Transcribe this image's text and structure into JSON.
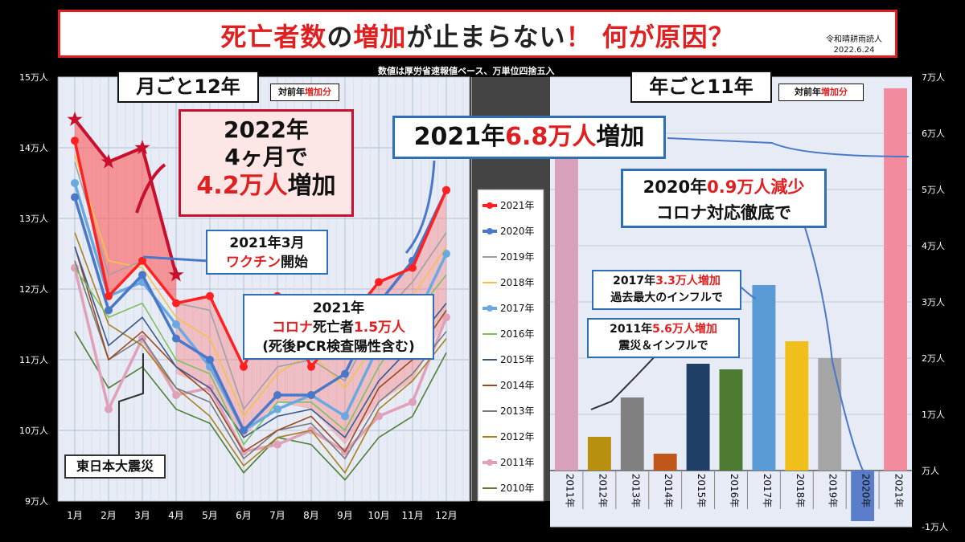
{
  "title": {
    "part1": "死亡者数",
    "part2": "の",
    "part3": "増加",
    "part4": "が止まらない",
    "part5": "！ 何が原因？",
    "credit_line1": "令和晴耕雨読人",
    "credit_line2": "2022.6.24"
  },
  "source_note": "数値は厚労省速報値ベース、万単位四捨五入",
  "left_panel": {
    "heading": "月ごと12年",
    "tag_prefix": "対前年",
    "tag_red": "増加分",
    "callout_2022_line1": "2022年",
    "callout_2022_line2": "4ヶ月で",
    "callout_2022_line3_red": "4.2万人",
    "callout_2022_line3_rest": "増加",
    "callout_vaccine_line1": "2021年3月",
    "callout_vaccine_line2_red": "ワクチン",
    "callout_vaccine_line2_rest": "開始",
    "callout_covid_line1": "2021年",
    "callout_covid_line2_red1": "コロナ",
    "callout_covid_line2_mid": "死亡者",
    "callout_covid_line2_red2": "1.5万人",
    "callout_covid_line3": "(死後PCR検査陽性含む)",
    "callout_quake": "東日本大震災"
  },
  "right_panel": {
    "heading": "年ごと11年",
    "tag_prefix": "対前年",
    "tag_red": "増加分",
    "callout_2021_pre": "2021年",
    "callout_2021_red": "6.8万人",
    "callout_2021_post": "増加",
    "callout_2020_pre": "2020年",
    "callout_2020_red": "0.9万人減少",
    "callout_2020_line2": "コロナ対応徹底で",
    "callout_2017_pre": "2017年",
    "callout_2017_red": "3.3万人増加",
    "callout_2017_line2": "過去最大のインフルで",
    "callout_2011_pre": "2011年",
    "callout_2011_red": "5.6万人増加",
    "callout_2011_line2": "震災＆インフルで"
  },
  "chart_data": [
    {
      "type": "line",
      "x": [
        "1月",
        "2月",
        "3月",
        "4月",
        "5月",
        "6月",
        "7月",
        "8月",
        "9月",
        "10月",
        "11月",
        "12月"
      ],
      "ylim": [
        9,
        15
      ],
      "yticks": [
        "9万人",
        "10万人",
        "11万人",
        "12万人",
        "13万人",
        "14万人",
        "15万人"
      ],
      "unit": "万人",
      "shaded_2022_vs_2021": true,
      "series": [
        {
          "name": "2022年",
          "color": "#c8102e",
          "values": [
            14.4,
            13.8,
            14.0,
            12.2,
            null,
            null,
            null,
            null,
            null,
            null,
            null,
            null
          ]
        },
        {
          "name": "2021年",
          "color": "#ff2020",
          "values": [
            14.1,
            11.9,
            12.4,
            11.8,
            11.9,
            10.9,
            11.9,
            10.9,
            11.5,
            12.1,
            12.3,
            13.4
          ]
        },
        {
          "name": "2020年",
          "color": "#4a78c8",
          "values": [
            13.3,
            11.7,
            12.2,
            11.3,
            11.0,
            10.0,
            10.5,
            10.5,
            10.8,
            11.8,
            12.4,
            13.4
          ]
        },
        {
          "name": "2019年",
          "color": "#a0a0a0",
          "values": [
            13.8,
            12.2,
            12.4,
            11.8,
            11.7,
            10.3,
            10.9,
            11.0,
            10.7,
            11.6,
            12.1,
            12.8
          ]
        },
        {
          "name": "2018年",
          "color": "#f2c14e",
          "values": [
            13.9,
            12.4,
            12.3,
            11.6,
            11.3,
            10.2,
            10.8,
            11.1,
            10.6,
            11.3,
            11.9,
            12.6
          ]
        },
        {
          "name": "2017年",
          "color": "#6aa9e0",
          "values": [
            13.5,
            11.9,
            12.1,
            11.5,
            10.9,
            10.0,
            10.3,
            10.5,
            10.2,
            11.2,
            11.5,
            12.5
          ]
        },
        {
          "name": "2016年",
          "color": "#7fbf5e",
          "values": [
            12.3,
            11.6,
            11.8,
            11.0,
            10.8,
            9.8,
            10.4,
            10.4,
            10.0,
            10.9,
            11.6,
            12.2
          ]
        },
        {
          "name": "2015年",
          "color": "#3a5a8a",
          "values": [
            12.6,
            11.2,
            11.6,
            10.9,
            10.6,
            9.9,
            10.2,
            10.3,
            9.9,
            10.7,
            11.2,
            11.8
          ]
        },
        {
          "name": "2014年",
          "color": "#9a4a1e",
          "values": [
            12.6,
            11.0,
            11.4,
            10.9,
            10.5,
            9.7,
            10.0,
            10.2,
            9.7,
            10.6,
            11.0,
            11.7
          ]
        },
        {
          "name": "2013年",
          "color": "#7a7a7a",
          "values": [
            12.4,
            11.0,
            11.3,
            10.6,
            10.4,
            9.6,
            10.0,
            10.1,
            9.6,
            10.4,
            10.8,
            11.4
          ]
        },
        {
          "name": "2012年",
          "color": "#a88020",
          "values": [
            12.8,
            11.5,
            11.2,
            10.6,
            10.2,
            9.5,
            9.9,
            10.0,
            9.4,
            10.3,
            10.7,
            11.3
          ]
        },
        {
          "name": "2011年",
          "color": "#e0a0b8",
          "values": [
            12.3,
            10.3,
            11.3,
            10.5,
            10.6,
            9.7,
            9.8,
            10.0,
            9.7,
            10.2,
            10.4,
            11.6
          ]
        },
        {
          "name": "2010年",
          "color": "#4f7f34",
          "values": [
            11.4,
            10.6,
            10.9,
            10.3,
            10.1,
            9.4,
            9.9,
            9.8,
            9.3,
            9.9,
            10.2,
            11.1
          ]
        }
      ]
    },
    {
      "type": "bar",
      "categories": [
        "2011年",
        "2012年",
        "2013年",
        "2014年",
        "2015年",
        "2016年",
        "2017年",
        "2018年",
        "2019年",
        "2020年",
        "2021年"
      ],
      "values": [
        5.6,
        0.6,
        1.3,
        0.3,
        1.9,
        1.8,
        3.3,
        2.3,
        2.0,
        -0.9,
        6.8
      ],
      "colors": [
        "#d9a0bc",
        "#b8900e",
        "#808080",
        "#c0561a",
        "#1f3f66",
        "#4d7a31",
        "#5b9bd5",
        "#f0bf1a",
        "#a5a5a5",
        "#5a7ec9",
        "#f28b9d"
      ],
      "ylim": [
        -1,
        7
      ],
      "yticks": [
        "-1万人",
        "万人",
        "1万人",
        "2万人",
        "3万人",
        "4万人",
        "5万人",
        "6万人",
        "7万人"
      ],
      "unit": "万人"
    }
  ]
}
